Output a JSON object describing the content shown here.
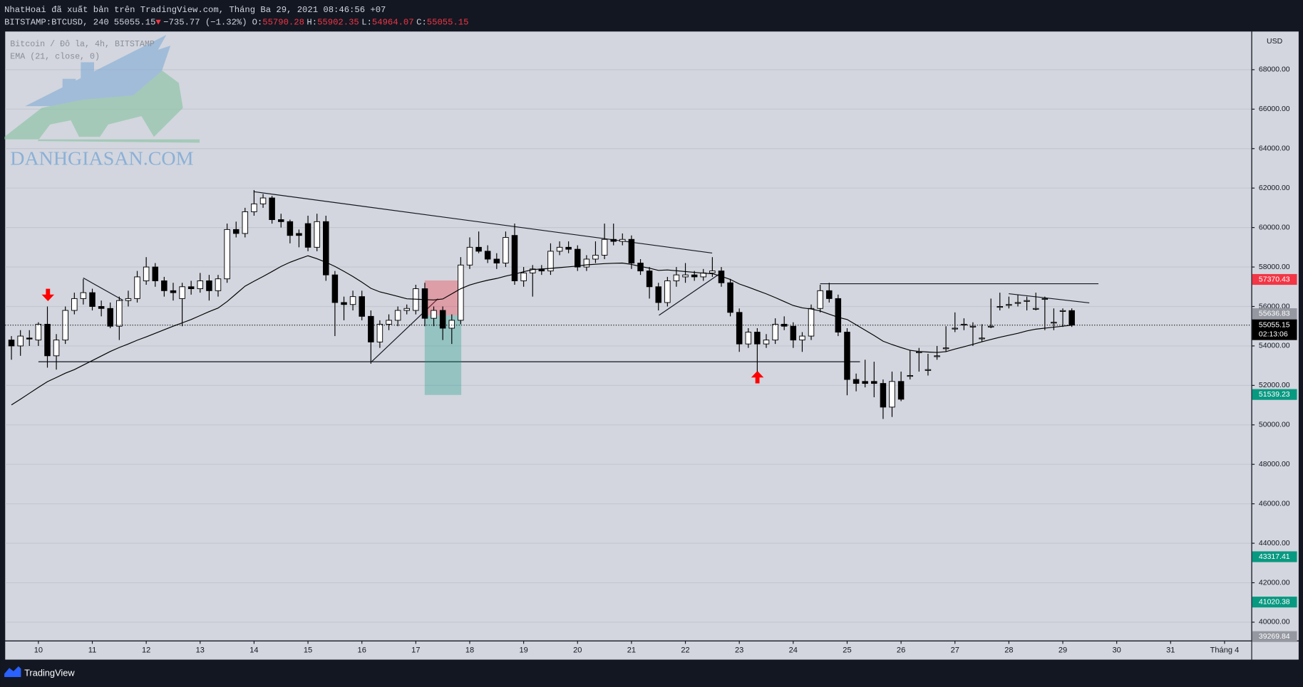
{
  "header": {
    "line1": "NhatHoai đã xuất bản trên TradingView.com, Tháng Ba 29, 2021 08:46:56 +07",
    "symbol": "BITSTAMP:BTCUSD, 240",
    "last": "55055.15",
    "arrow": "▼",
    "change": "−735.77 (−1.32%)",
    "ohlc": [
      {
        "key": "O:",
        "value": "55790.28"
      },
      {
        "key": "H:",
        "value": "55902.35"
      },
      {
        "key": "L:",
        "value": "54964.07"
      },
      {
        "key": "C:",
        "value": "55055.15"
      }
    ]
  },
  "watermark": "DANHGIASAN.COM",
  "footer": {
    "brand": "TradingView"
  },
  "chart_data": {
    "type": "candlestick",
    "currency": "USD",
    "x": [
      9.5,
      9.667,
      9.833,
      10,
      10.167,
      10.333,
      10.5,
      10.667,
      10.833,
      11,
      11.167,
      11.333,
      11.5,
      11.667,
      11.833,
      12,
      12.167,
      12.333,
      12.5,
      12.667,
      12.833,
      13,
      13.167,
      13.333,
      13.5,
      13.667,
      13.833,
      14,
      14.167,
      14.333,
      14.5,
      14.667,
      14.833,
      15,
      15.167,
      15.333,
      15.5,
      15.667,
      15.833,
      16,
      16.167,
      16.333,
      16.5,
      16.667,
      16.833,
      17,
      17.167,
      17.333,
      17.5,
      17.667,
      17.833,
      18,
      18.167,
      18.333,
      18.5,
      18.667,
      18.833,
      19,
      19.167,
      19.333,
      19.5,
      19.667,
      19.833,
      20,
      20.167,
      20.333,
      20.5,
      20.667,
      20.833,
      21,
      21.167,
      21.333,
      21.5,
      21.667,
      21.833,
      22,
      22.167,
      22.333,
      22.5,
      22.667,
      22.833,
      23,
      23.167,
      23.333,
      23.5,
      23.667,
      23.833,
      24,
      24.167,
      24.333,
      24.5,
      24.667,
      24.833,
      25,
      25.167,
      25.333,
      25.5,
      25.667,
      25.833,
      26,
      26.167,
      26.333,
      26.5,
      26.667,
      26.833,
      27,
      27.167,
      27.333,
      27.5,
      27.667,
      27.833,
      28,
      28.167,
      28.333,
      28.5,
      28.667,
      28.833,
      29,
      29.167
    ],
    "series": [
      {
        "name": "Bitcoin / Đô la, 4h, BITSTAMP",
        "type": "candlestick",
        "up_color": "#ffffff",
        "down_color": "#000000",
        "open": [
          54300,
          54000,
          54400,
          54300,
          55100,
          53500,
          54300,
          55800,
          56400,
          56700,
          56000,
          55900,
          55000,
          56300,
          56400,
          57300,
          58000,
          57300,
          56800,
          56400,
          57000,
          56900,
          57300,
          56800,
          57400,
          59900,
          59700,
          60800,
          61200,
          61500,
          60400,
          60300,
          59700,
          60200,
          59000,
          60300,
          57600,
          56200,
          56100,
          56500,
          55500,
          54200,
          55100,
          55300,
          55800,
          55800,
          56900,
          55400,
          55800,
          54900,
          55300,
          58100,
          59000,
          58800,
          58400,
          58200,
          59600,
          57300,
          57700,
          57900,
          57800,
          58800,
          59000,
          58900,
          58000,
          58400,
          58600,
          59400,
          59300,
          59400,
          58200,
          57800,
          57000,
          56200,
          57300,
          57500,
          57600,
          57500,
          57700,
          57800,
          57200,
          55700,
          54100,
          54700,
          54100,
          54300,
          55100,
          55000,
          54300,
          54500,
          55900,
          56800,
          56400,
          54700,
          52300,
          52200,
          52200,
          52100,
          50900,
          52200,
          52500,
          53700,
          52800,
          53500,
          53900,
          54900,
          55100,
          55000,
          54400,
          55000,
          56000,
          56100,
          56200,
          56300,
          55900,
          56400,
          55200,
          55790.28,
          55790.28
        ],
        "high": [
          54500,
          54800,
          54800,
          55200,
          56000,
          54600,
          56000,
          56700,
          57400,
          56900,
          56300,
          56200,
          56500,
          56800,
          57800,
          58500,
          58200,
          57500,
          57200,
          57200,
          57300,
          57700,
          57600,
          57600,
          60200,
          60300,
          61000,
          61900,
          61700,
          61600,
          60700,
          60400,
          59900,
          60600,
          60700,
          60600,
          57800,
          56500,
          56800,
          56800,
          55800,
          55300,
          55600,
          56000,
          56100,
          57100,
          57200,
          56000,
          56000,
          55600,
          58500,
          59500,
          59800,
          59100,
          58700,
          59800,
          60200,
          58000,
          58100,
          58100,
          59200,
          59300,
          59300,
          59100,
          58600,
          59300,
          60200,
          60200,
          59700,
          59600,
          58400,
          58000,
          57200,
          57500,
          58000,
          58200,
          57800,
          57900,
          58500,
          58000,
          57400,
          55900,
          54900,
          54900,
          54600,
          55400,
          55500,
          55200,
          54700,
          56100,
          57100,
          57200,
          56600,
          54900,
          52600,
          53300,
          53200,
          52300,
          52700,
          52700,
          53800,
          53900,
          53600,
          54000,
          55000,
          55700,
          55400,
          55200,
          55100,
          56400,
          56700,
          56500,
          56600,
          56500,
          56700,
          56500,
          55900,
          55902.35,
          55902.35
        ],
        "low": [
          53300,
          53500,
          54000,
          54000,
          52900,
          52800,
          54100,
          55600,
          56100,
          55800,
          55500,
          54900,
          54300,
          56000,
          56200,
          57100,
          57000,
          56500,
          56300,
          55000,
          56600,
          56700,
          56300,
          56500,
          57200,
          59500,
          59500,
          60600,
          61000,
          60200,
          60000,
          59200,
          59000,
          58800,
          58800,
          57300,
          54500,
          55300,
          55800,
          55300,
          53100,
          53900,
          54800,
          55000,
          55600,
          55600,
          55000,
          55000,
          54300,
          54100,
          55100,
          57900,
          58700,
          58200,
          57900,
          58000,
          57100,
          57000,
          56500,
          57600,
          57600,
          58600,
          58700,
          57800,
          57800,
          58200,
          58400,
          59100,
          59100,
          57900,
          57600,
          56400,
          55800,
          56000,
          57000,
          57200,
          57300,
          57300,
          57500,
          57000,
          55500,
          53700,
          53900,
          52700,
          53900,
          54100,
          54800,
          53900,
          53700,
          54300,
          55700,
          56200,
          54500,
          51500,
          51700,
          51900,
          51400,
          50300,
          50400,
          51200,
          52300,
          52700,
          52500,
          53300,
          53700,
          54700,
          54800,
          54000,
          54200,
          54900,
          55800,
          55900,
          56000,
          55800,
          55800,
          54800,
          54800,
          54964.07,
          54964.07
        ],
        "close": [
          54000,
          54500,
          54350,
          55100,
          53500,
          54300,
          55800,
          56400,
          56700,
          56000,
          55900,
          55000,
          56300,
          56400,
          57500,
          58000,
          57300,
          56800,
          56700,
          57000,
          56900,
          57300,
          56800,
          57400,
          59900,
          59700,
          60800,
          61200,
          61500,
          60400,
          60300,
          59600,
          59600,
          59000,
          60300,
          57600,
          56200,
          56100,
          56500,
          55500,
          54200,
          55100,
          55300,
          55800,
          55900,
          56900,
          55400,
          55800,
          54900,
          55300,
          58100,
          59000,
          58800,
          58400,
          58200,
          59500,
          57300,
          57700,
          57900,
          57800,
          58800,
          59000,
          58900,
          58000,
          58400,
          58600,
          59400,
          59300,
          59400,
          58200,
          57800,
          57000,
          56200,
          57300,
          57600,
          57600,
          57500,
          57700,
          57800,
          57200,
          55700,
          54100,
          54700,
          54100,
          54300,
          55100,
          55000,
          54300,
          54500,
          55900,
          56800,
          56400,
          54700,
          52300,
          52100,
          52100,
          52100,
          50900,
          52200,
          51300,
          52500,
          53700,
          52800,
          53500,
          53900,
          54900,
          55100,
          55000,
          54400,
          55000,
          56000,
          56100,
          56200,
          56300,
          55900,
          56400,
          55200,
          55790.28,
          55055.15
        ]
      },
      {
        "name": "EMA (21, close, 0)",
        "type": "line",
        "color": "#000000",
        "values": [
          51010,
          51300,
          51600,
          51900,
          52190,
          52400,
          52620,
          52800,
          53030,
          53260,
          53490,
          53720,
          53920,
          54100,
          54290,
          54460,
          54640,
          54820,
          55000,
          55170,
          55340,
          55540,
          55740,
          55920,
          56250,
          56640,
          57030,
          57280,
          57520,
          57770,
          58030,
          58240,
          58410,
          58570,
          58420,
          58240,
          58030,
          57780,
          57520,
          57230,
          56920,
          56740,
          56630,
          56510,
          56390,
          56370,
          56350,
          56330,
          56380,
          56640,
          56900,
          57090,
          57220,
          57330,
          57420,
          57540,
          57640,
          57760,
          57870,
          57900,
          57930,
          57970,
          58010,
          58050,
          58110,
          58140,
          58170,
          58190,
          58200,
          58130,
          58030,
          57940,
          57830,
          57850,
          57810,
          57770,
          57730,
          57690,
          57660,
          57530,
          57370,
          57140,
          56980,
          56810,
          56640,
          56450,
          56250,
          56050,
          55930,
          55870,
          55770,
          55610,
          55450,
          55340,
          55070,
          54800,
          54530,
          54240,
          54070,
          53920,
          53780,
          53720,
          53690,
          53670,
          53710,
          53840,
          53960,
          54080,
          54210,
          54330,
          54440,
          54540,
          54640,
          54760,
          54850,
          54900,
          54950,
          55000,
          55050
        ]
      }
    ],
    "xlim": [
      9.384,
      32.496
    ],
    "xticks": [
      10,
      11,
      12,
      13,
      14,
      15,
      16,
      17,
      18,
      19,
      20,
      21,
      22,
      23,
      24,
      25,
      26,
      27,
      28,
      29,
      30,
      31,
      {
        "value": 32,
        "label": "Tháng 4"
      }
    ],
    "ylim": [
      39070,
      69934
    ],
    "yticks": [
      {
        "value": 40000,
        "label": "40000.00"
      },
      {
        "value": 42000,
        "label": "42000.00"
      },
      {
        "value": 44000,
        "label": "44000.00"
      },
      {
        "value": 46000,
        "label": "46000.00"
      },
      {
        "value": 48000,
        "label": "48000.00"
      },
      {
        "value": 50000,
        "label": "50000.00"
      },
      {
        "value": 52000,
        "label": "52000.00"
      },
      {
        "value": 54000,
        "label": "54000.00"
      },
      {
        "value": 56000,
        "label": "56000.00"
      },
      {
        "value": 58000,
        "label": "58000.00"
      },
      {
        "value": 60000,
        "label": "60000.00"
      },
      {
        "value": 62000,
        "label": "62000.00"
      },
      {
        "value": 64000,
        "label": "64000.00"
      },
      {
        "value": 66000,
        "label": "66000.00"
      },
      {
        "value": 68000,
        "label": "68000.00"
      }
    ],
    "grid": true,
    "price_labels": [
      {
        "value": 57370.43,
        "color": "#f23645"
      },
      {
        "value": 55636.83,
        "color": "#9598a1"
      },
      {
        "value": 51539.23,
        "color": "#089981"
      },
      {
        "value": 43317.41,
        "color": "#089981"
      },
      {
        "value": 41020.38,
        "color": "#089981"
      },
      {
        "value": 39269.84,
        "color": "#9598a1"
      }
    ],
    "last_price": {
      "value": 55055.15,
      "color": "#000000",
      "countdown": "02:13:06"
    }
  }
}
